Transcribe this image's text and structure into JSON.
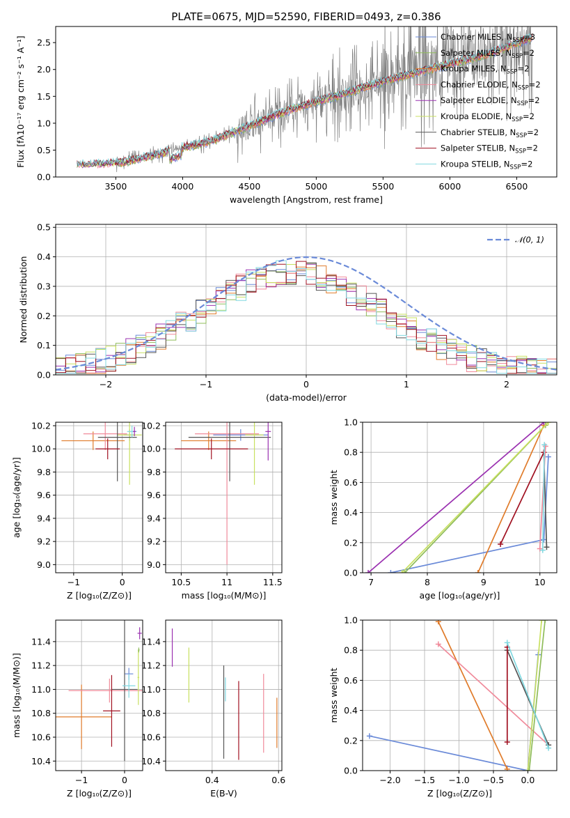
{
  "palette": {
    "chabrier_miles": "#6a8ad8",
    "salpeter_miles": "#8fbc5a",
    "kroupa_miles": "#e07b2a",
    "chabrier_elodie": "#f08a9a",
    "salpeter_elodie": "#9a30b0",
    "kroupa_elodie": "#c8e060",
    "chabrier_stelib": "#555555",
    "salpeter_stelib": "#a01020",
    "kroupa_stelib": "#80d8e0",
    "data": "#808080",
    "normal": "#6a8ad8"
  },
  "chart_data": [
    {
      "id": "spectrum",
      "type": "line",
      "title": "PLATE=0675, MJD=52590, FIBERID=0493, z=0.386",
      "xlabel": "wavelength [Angstrom, rest frame]",
      "ylabel": "Flux [fλ10⁻¹⁷ erg cm⁻² s⁻¹ A⁻¹]",
      "xlim": [
        3050,
        6800
      ],
      "ylim": [
        0,
        2.8
      ],
      "xticks": [
        3500,
        4000,
        4500,
        5000,
        5500,
        6000,
        6500
      ],
      "yticks": [
        0.0,
        0.5,
        1.0,
        1.5,
        2.0,
        2.5
      ],
      "continuum": {
        "x": [
          3210,
          3500,
          3700,
          4000,
          4200,
          4500,
          4800,
          5000,
          5300,
          5600,
          6000,
          6300,
          6620
        ],
        "y": [
          0.22,
          0.25,
          0.35,
          0.55,
          0.65,
          0.95,
          1.25,
          1.4,
          1.62,
          1.85,
          2.1,
          2.3,
          2.6
        ]
      },
      "legend": [
        {
          "key": "chabrier_miles",
          "label": "Chabrier MILES, N",
          "sub": "SSP",
          "n": "=3"
        },
        {
          "key": "salpeter_miles",
          "label": "Salpeter MILES, N",
          "sub": "SSP",
          "n": "=2"
        },
        {
          "key": "kroupa_miles",
          "label": "Kroupa MILES, N",
          "sub": "SSP",
          "n": "=2"
        },
        {
          "key": "chabrier_elodie",
          "label": "Chabrier ELODIE, N",
          "sub": "SSP",
          "n": "=2"
        },
        {
          "key": "salpeter_elodie",
          "label": "Salpeter ELODIE, N",
          "sub": "SSP",
          "n": "=2"
        },
        {
          "key": "kroupa_elodie",
          "label": "Kroupa ELODIE, N",
          "sub": "SSP",
          "n": "=2"
        },
        {
          "key": "chabrier_stelib",
          "label": "Chabrier STELIB, N",
          "sub": "SSP",
          "n": "=2"
        },
        {
          "key": "salpeter_stelib",
          "label": "Salpeter STELIB, N",
          "sub": "SSP",
          "n": "=2"
        },
        {
          "key": "kroupa_stelib",
          "label": "Kroupa STELIB, N",
          "sub": "SSP",
          "n": "=2"
        }
      ]
    },
    {
      "id": "residuals",
      "type": "histogram",
      "xlabel": "(data-model)/error",
      "ylabel": "Normed distribution",
      "xlim": [
        -2.5,
        2.5
      ],
      "ylim": [
        0,
        0.51
      ],
      "xticks": [
        -2,
        -1,
        0,
        1,
        2
      ],
      "yticks": [
        0.0,
        0.1,
        0.2,
        0.3,
        0.4,
        0.5
      ],
      "legend": "𝒩(0, 1)",
      "bin_width": 0.1
    },
    {
      "id": "age_vs_Z",
      "type": "errorbar",
      "xlabel": "Z [log₁₀(Z/Z⊙)]",
      "ylabel": "age  [log₁₀(age/yr)]",
      "xlim": [
        -1.37,
        0.42
      ],
      "ylim": [
        8.93,
        10.23
      ],
      "xticks": [
        -1,
        0
      ],
      "yticks": [
        9.0,
        9.2,
        9.4,
        9.6,
        9.8,
        10.0,
        10.2
      ],
      "points": [
        {
          "key": "chabrier_miles",
          "x": 0.15,
          "y": 10.12,
          "xe": 0.12,
          "ye": 0.05
        },
        {
          "key": "kroupa_miles",
          "x": -0.6,
          "y": 10.07,
          "xe": 0.65,
          "ye": 0.08
        },
        {
          "key": "chabrier_elodie",
          "x": -0.35,
          "y": 10.13,
          "xe": 0.45,
          "ye": 0.14
        },
        {
          "key": "kroupa_elodie",
          "x": 0.15,
          "y": 10.12,
          "xe": 0.25,
          "ye": 0.43
        },
        {
          "key": "chabrier_stelib",
          "x": -0.1,
          "y": 10.1,
          "xe": 0.4,
          "ye": 0.38
        },
        {
          "key": "salpeter_stelib",
          "x": -0.3,
          "y": 10.0,
          "xe": 0.25,
          "ye": 0.09
        },
        {
          "key": "kroupa_stelib",
          "x": 0.2,
          "y": 10.15,
          "xe": 0.1,
          "ye": 0.05
        },
        {
          "key": "salpeter_elodie",
          "x": 0.25,
          "y": 10.15,
          "xe": 0.03,
          "ye": 0.04
        }
      ]
    },
    {
      "id": "age_vs_mass",
      "type": "errorbar",
      "xlabel": "mass [log₁₀(M/M⊙)]",
      "ylabel": "",
      "xlim": [
        10.33,
        11.6
      ],
      "ylim": [
        8.93,
        10.23
      ],
      "xticks": [
        10.5,
        11.0,
        11.5
      ],
      "yticks": [
        9.0,
        9.2,
        9.4,
        9.6,
        9.8,
        10.0,
        10.2
      ],
      "points": [
        {
          "key": "chabrier_miles",
          "x": 11.15,
          "y": 10.12,
          "xe": 0.3,
          "ye": 0.05
        },
        {
          "key": "kroupa_miles",
          "x": 10.8,
          "y": 10.07,
          "xe": 0.3,
          "ye": 0.08
        },
        {
          "key": "chabrier_elodie",
          "x": 11.0,
          "y": 10.13,
          "xe": 0.35,
          "ye": 1.13
        },
        {
          "key": "kroupa_elodie",
          "x": 11.3,
          "y": 10.12,
          "xe": 0.1,
          "ye": 0.43
        },
        {
          "key": "chabrier_stelib",
          "x": 11.03,
          "y": 10.1,
          "xe": 0.45,
          "ye": 0.38
        },
        {
          "key": "salpeter_stelib",
          "x": 10.83,
          "y": 10.0,
          "xe": 0.4,
          "ye": 0.09
        },
        {
          "key": "salpeter_elodie",
          "x": 11.45,
          "y": 10.15,
          "xe": 0.03,
          "ye": 0.25
        }
      ]
    },
    {
      "id": "weight_vs_age",
      "type": "line",
      "xlabel": "age  [log₁₀(age/yr)]",
      "ylabel": "mass weight",
      "xlim": [
        6.85,
        10.3
      ],
      "ylim": [
        0,
        1.0
      ],
      "xticks": [
        7,
        8,
        9,
        10
      ],
      "yticks": [
        0.0,
        0.2,
        0.4,
        0.6,
        0.8,
        1.0
      ],
      "series": [
        {
          "key": "chabrier_miles",
          "x": [
            7.35,
            10.07,
            10.15
          ],
          "y": [
            0.0,
            0.22,
            0.77
          ]
        },
        {
          "key": "salpeter_miles",
          "x": [
            7.6,
            10.1
          ],
          "y": [
            0.0,
            0.98
          ]
        },
        {
          "key": "kroupa_miles",
          "x": [
            8.9,
            10.07
          ],
          "y": [
            0.0,
            0.98
          ]
        },
        {
          "key": "salpeter_elodie",
          "x": [
            6.95,
            10.07
          ],
          "y": [
            0.0,
            1.0
          ]
        },
        {
          "key": "kroupa_elodie",
          "x": [
            7.55,
            10.15
          ],
          "y": [
            0.0,
            1.0
          ]
        },
        {
          "key": "chabrier_stelib",
          "x": [
            10.07,
            10.12
          ],
          "y": [
            0.8,
            0.17
          ]
        },
        {
          "key": "salpeter_stelib",
          "x": [
            9.3,
            10.07
          ],
          "y": [
            0.19,
            0.8
          ]
        },
        {
          "key": "chabrier_elodie",
          "x": [
            10.0,
            10.1
          ],
          "y": [
            0.16,
            0.84
          ]
        },
        {
          "key": "kroupa_stelib",
          "x": [
            10.05,
            10.08
          ],
          "y": [
            0.15,
            0.85
          ]
        }
      ]
    },
    {
      "id": "mass_vs_Z",
      "type": "errorbar",
      "xlabel": "Z [log₁₀(Z/Z⊙)]",
      "ylabel": "mass [log₁₀(M/M⊙)]",
      "xlim": [
        -1.6,
        0.42
      ],
      "ylim": [
        10.32,
        11.58
      ],
      "xticks": [
        -1,
        0
      ],
      "yticks": [
        10.4,
        10.6,
        10.8,
        11.0,
        11.2,
        11.4
      ],
      "points": [
        {
          "key": "chabrier_miles",
          "x": 0.1,
          "y": 11.13,
          "xe": 0.1,
          "ye": 0.05
        },
        {
          "key": "kroupa_miles",
          "x": -1.0,
          "y": 10.77,
          "xe": 0.7,
          "ye": 0.27
        },
        {
          "key": "chabrier_elodie",
          "x": -0.35,
          "y": 10.99,
          "xe": 0.95,
          "ye": 0.1
        },
        {
          "key": "kroupa_elodie",
          "x": 0.32,
          "y": 11.1,
          "xe": 0.02,
          "ye": 0.23
        },
        {
          "key": "chabrier_stelib",
          "x": 0.0,
          "y": 11.0,
          "xe": 0.3,
          "ye": 0.6
        },
        {
          "key": "salpeter_stelib",
          "x": -0.3,
          "y": 10.82,
          "xe": 0.2,
          "ye": 0.3
        },
        {
          "key": "kroupa_stelib",
          "x": 0.1,
          "y": 11.03,
          "xe": 0.15,
          "ye": 0.1
        },
        {
          "key": "salpeter_elodie",
          "x": 0.35,
          "y": 11.47,
          "xe": 0.05,
          "ye": 0.05
        },
        {
          "key": "salpeter_miles",
          "x": 0.33,
          "y": 11.33,
          "xe": 0.02,
          "ye": 0.02
        }
      ]
    },
    {
      "id": "mass_vs_ebv",
      "type": "errorbar",
      "xlabel": "E(B-V)",
      "ylabel": "",
      "xlim": [
        0.26,
        0.61
      ],
      "ylim": [
        10.32,
        11.58
      ],
      "xticks": [
        0.4,
        0.6
      ],
      "yticks": [
        10.4,
        10.6,
        10.8,
        11.0,
        11.2,
        11.4
      ],
      "points": [
        {
          "key": "salpeter_elodie",
          "x": 0.28,
          "y": 11.35,
          "xe": 0,
          "ye": 0.16
        },
        {
          "key": "kroupa_elodie",
          "x": 0.33,
          "y": 11.12,
          "xe": 0,
          "ye": 0.23
        },
        {
          "key": "chabrier_stelib",
          "x": 0.435,
          "y": 10.81,
          "xe": 0,
          "ye": 0.39
        },
        {
          "key": "kroupa_stelib",
          "x": 0.44,
          "y": 11.0,
          "xe": 0,
          "ye": 0.1
        },
        {
          "key": "salpeter_stelib",
          "x": 0.48,
          "y": 10.74,
          "xe": 0,
          "ye": 0.33
        },
        {
          "key": "chabrier_elodie",
          "x": 0.555,
          "y": 10.8,
          "xe": 0,
          "ye": 0.33
        },
        {
          "key": "kroupa_miles",
          "x": 0.595,
          "y": 10.72,
          "xe": 0,
          "ye": 0.21
        }
      ]
    },
    {
      "id": "weight_vs_Z",
      "type": "line",
      "xlabel": "Z [log₁₀(Z/Z⊙)]",
      "ylabel": "mass weight",
      "xlim": [
        -2.4,
        0.42
      ],
      "ylim": [
        0,
        1.0
      ],
      "xticks": [
        -2.0,
        -1.5,
        -1.0,
        -0.5,
        0.0
      ],
      "yticks": [
        0.0,
        0.2,
        0.4,
        0.6,
        0.8,
        1.0
      ],
      "series": [
        {
          "key": "chabrier_miles",
          "x": [
            -2.3,
            0.0,
            0.15
          ],
          "y": [
            0.23,
            0.0,
            0.77
          ]
        },
        {
          "key": "kroupa_miles",
          "x": [
            -1.3,
            -0.3
          ],
          "y": [
            0.99,
            0.01
          ]
        },
        {
          "key": "chabrier_elodie",
          "x": [
            -1.3,
            0.3
          ],
          "y": [
            0.84,
            0.17
          ]
        },
        {
          "key": "kroupa_elodie",
          "x": [
            0.0,
            0.2
          ],
          "y": [
            0.0,
            1.0
          ]
        },
        {
          "key": "salpeter_miles",
          "x": [
            0.02,
            0.25
          ],
          "y": [
            0.0,
            1.0
          ]
        },
        {
          "key": "chabrier_stelib",
          "x": [
            -0.3,
            0.3
          ],
          "y": [
            0.8,
            0.17
          ]
        },
        {
          "key": "salpeter_stelib",
          "x": [
            -0.3,
            -0.3
          ],
          "y": [
            0.19,
            0.82
          ]
        },
        {
          "key": "kroupa_stelib",
          "x": [
            -0.3,
            0.3
          ],
          "y": [
            0.85,
            0.15
          ]
        }
      ]
    }
  ]
}
